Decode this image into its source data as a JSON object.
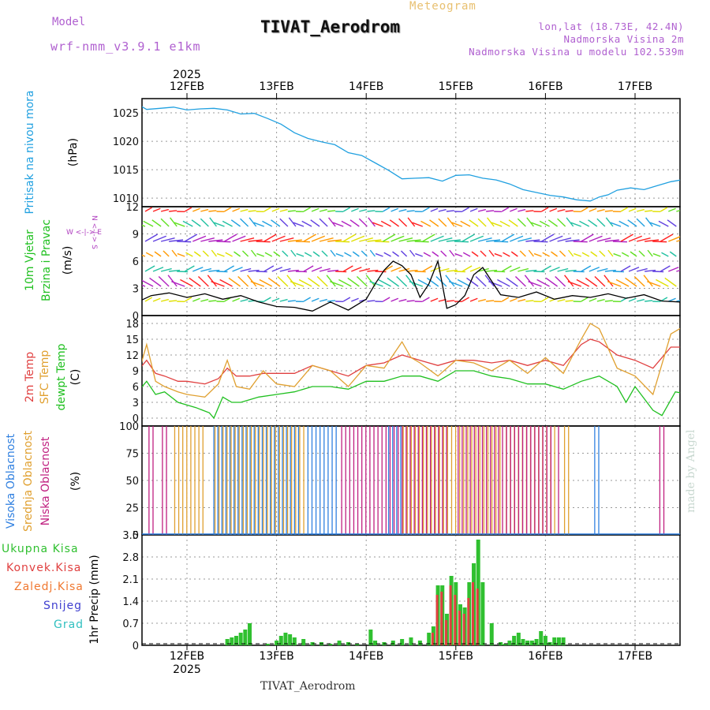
{
  "header": {
    "model_label": "Model",
    "model_name": "wrf-nmm_v3.9.1 e1km",
    "meteogram_label": "Meteogram",
    "title": "TIVAT_Aerodrom",
    "lonlat": "lon,lat (18.73E, 42.4N)",
    "altitude": "Nadmorska Visina 2m",
    "model_altitude": "Nadmorska Visina u modelu 102.539m"
  },
  "footer": {
    "station": "TIVAT_Aerodrom",
    "credit": "made by Angel"
  },
  "colors": {
    "pressure": "#20a0e0",
    "temp2m": "#e04040",
    "sfc": "#e0a030",
    "dew": "#20c020",
    "high_cloud": "#3080e0",
    "mid_cloud": "#e0a030",
    "low_cloud": "#c02080",
    "total_precip": "#30c030",
    "convective": "#e04040"
  },
  "chart_data": [
    {
      "type": "line",
      "name": "pressure",
      "ylabel": [
        "Pritisak na nivou mora",
        "(hPa)"
      ],
      "ylim": [
        1008.5,
        1027.5
      ],
      "yticks": [
        1010,
        1015,
        1020,
        1025
      ],
      "x_days": [
        "12FEB",
        "13FEB",
        "14FEB",
        "15FEB",
        "16FEB",
        "17FEB"
      ],
      "x_year": "2025",
      "grid": true,
      "series": [
        {
          "x": [
            -0.55,
            -0.45,
            -0.3,
            -0.15,
            0,
            0.15,
            0.3,
            0.45,
            0.6,
            0.75,
            0.9,
            1.05,
            1.2,
            1.35,
            1.5,
            1.65,
            1.8,
            1.95,
            2.1,
            2.25,
            2.4,
            2.55,
            2.7,
            2.85,
            3.0,
            3.15,
            3.3,
            3.45,
            3.6,
            3.75,
            3.9,
            4.05,
            4.2,
            4.35,
            4.5,
            4.6,
            4.7,
            4.8,
            4.95,
            5.1,
            5.25,
            5.4,
            5.55,
            5.6
          ],
          "values": [
            1026.5,
            1025.6,
            1025.8,
            1026.0,
            1025.5,
            1025.7,
            1025.8,
            1025.5,
            1024.8,
            1024.9,
            1024.0,
            1023.0,
            1021.5,
            1020.5,
            1019.9,
            1019.4,
            1018.0,
            1017.5,
            1016.2,
            1014.9,
            1013.4,
            1013.5,
            1013.6,
            1013.0,
            1014.0,
            1014.1,
            1013.5,
            1013.2,
            1012.5,
            1011.5,
            1011.0,
            1010.5,
            1010.2,
            1009.7,
            1009.5,
            1010.2,
            1010.6,
            1011.4,
            1011.8,
            1011.5,
            1012.2,
            1012.9,
            1013.3,
            1013.3
          ]
        }
      ]
    },
    {
      "type": "line",
      "name": "wind",
      "ylabel": [
        "10m Vjetar",
        "Brzina i Pravac",
        "(m/s)"
      ],
      "compass": [
        "N",
        "W",
        "E",
        "S"
      ],
      "ylim": [
        0,
        12
      ],
      "yticks": [
        0,
        3,
        6,
        9,
        12
      ],
      "grid": true,
      "series": [
        {
          "name": "speed",
          "x": [
            -0.55,
            -0.4,
            -0.2,
            0,
            0.2,
            0.4,
            0.6,
            0.8,
            1.0,
            1.2,
            1.4,
            1.6,
            1.8,
            2.0,
            2.1,
            2.2,
            2.3,
            2.4,
            2.5,
            2.6,
            2.7,
            2.8,
            2.9,
            3.0,
            3.1,
            3.2,
            3.3,
            3.5,
            3.7,
            3.9,
            4.1,
            4.3,
            4.5,
            4.7,
            4.9,
            5.1,
            5.3,
            5.5,
            5.6
          ],
          "values": [
            1.5,
            2.2,
            2.5,
            2.0,
            2.4,
            1.8,
            2.2,
            1.5,
            1.0,
            0.9,
            0.5,
            1.5,
            0.6,
            1.8,
            3.5,
            5.0,
            6.0,
            5.5,
            4.5,
            2.0,
            3.5,
            6.0,
            0.8,
            1.2,
            2.2,
            4.5,
            5.3,
            2.3,
            2.0,
            2.6,
            1.8,
            2.2,
            2.0,
            2.4,
            1.9,
            2.3,
            1.6,
            1.5,
            2.4
          ]
        }
      ]
    },
    {
      "type": "line",
      "name": "temperature",
      "ylabel": [
        "2m Temp",
        "SFC Temp",
        "dewpt Temp",
        "(C)"
      ],
      "ylim": [
        -1.5,
        19.5
      ],
      "yticks": [
        0,
        3,
        6,
        9,
        12,
        15,
        18
      ],
      "grid": true,
      "series": [
        {
          "name": "2m Temp",
          "x": [
            -0.55,
            -0.45,
            -0.35,
            -0.25,
            -0.1,
            0,
            0.2,
            0.35,
            0.45,
            0.55,
            0.7,
            0.85,
            1.0,
            1.2,
            1.4,
            1.6,
            1.8,
            2.0,
            2.2,
            2.4,
            2.6,
            2.8,
            3.0,
            3.2,
            3.4,
            3.6,
            3.8,
            4.0,
            4.2,
            4.4,
            4.5,
            4.6,
            4.8,
            5.0,
            5.2,
            5.4,
            5.6
          ],
          "values": [
            9,
            11,
            8.5,
            8,
            7,
            7,
            6.5,
            7.5,
            9.5,
            8,
            8,
            8.5,
            8.5,
            8.5,
            10,
            9,
            8,
            10,
            10.5,
            12,
            11,
            10,
            11,
            11,
            10.5,
            11,
            10,
            11,
            10,
            14,
            15,
            14.5,
            12,
            11,
            9.5,
            13.5,
            13.5
          ]
        },
        {
          "name": "SFC Temp",
          "x": [
            -0.55,
            -0.45,
            -0.35,
            -0.25,
            -0.1,
            0,
            0.2,
            0.35,
            0.45,
            0.55,
            0.7,
            0.85,
            1.0,
            1.2,
            1.4,
            1.6,
            1.8,
            2.0,
            2.2,
            2.4,
            2.5,
            2.6,
            2.8,
            3.0,
            3.2,
            3.4,
            3.6,
            3.8,
            4.0,
            4.2,
            4.4,
            4.5,
            4.6,
            4.8,
            5.0,
            5.2,
            5.4,
            5.6
          ],
          "values": [
            8,
            14,
            7,
            6,
            5,
            4.5,
            4,
            6.5,
            11,
            6,
            5.5,
            9,
            6.5,
            6,
            10,
            9,
            6,
            10,
            9.5,
            14.5,
            11.5,
            10.5,
            8,
            11,
            10.5,
            9,
            11,
            8.5,
            11.5,
            8.5,
            15,
            18,
            17,
            9.5,
            8,
            4.5,
            16,
            18
          ]
        },
        {
          "name": "dewpt Temp",
          "x": [
            -0.55,
            -0.45,
            -0.35,
            -0.25,
            -0.1,
            0.1,
            0.25,
            0.3,
            0.4,
            0.5,
            0.6,
            0.8,
            1.0,
            1.2,
            1.4,
            1.6,
            1.8,
            2.0,
            2.2,
            2.4,
            2.6,
            2.8,
            3.0,
            3.2,
            3.4,
            3.6,
            3.8,
            4.0,
            4.2,
            4.4,
            4.6,
            4.8,
            4.9,
            5.0,
            5.2,
            5.3,
            5.45,
            5.6
          ],
          "values": [
            5,
            7,
            4.5,
            5,
            3,
            2,
            1,
            0,
            4,
            3,
            3,
            4,
            4.5,
            5,
            6,
            6,
            5.5,
            7,
            7,
            8,
            8,
            7,
            9,
            9,
            8,
            7.5,
            6.5,
            6.5,
            5.5,
            7,
            8,
            6,
            3,
            6,
            1.5,
            0.5,
            5,
            4.5
          ]
        }
      ]
    },
    {
      "type": "bar",
      "name": "cloud",
      "ylabel": [
        "Visoka Oblacnost",
        "Srednja Oblacnost",
        "Niska Oblacnost",
        "(%)"
      ],
      "ylim": [
        0,
        100
      ],
      "yticks": [
        0,
        25,
        50,
        75,
        100
      ],
      "grid": true,
      "series": [
        {
          "name": "Visoka Oblacnost",
          "ranges": [
            [
              0.3,
              1.25
            ],
            [
              1.35,
              1.7
            ],
            [
              2.25,
              2.4
            ],
            [
              4.55,
              4.6
            ]
          ]
        },
        {
          "name": "Srednja Oblacnost",
          "ranges": [
            [
              -0.15,
              0.2
            ],
            [
              0.3,
              1.3
            ],
            [
              2.4,
              3.5
            ],
            [
              3.55,
              4.1
            ],
            [
              4.2,
              4.25
            ]
          ]
        },
        {
          "name": "Niska Oblacnost",
          "ranges": [
            [
              -0.45,
              -0.4
            ],
            [
              -0.3,
              -0.25
            ],
            [
              1.7,
              2.9
            ],
            [
              3.0,
              4.05
            ],
            [
              4.12,
              4.15
            ],
            [
              5.25,
              5.3
            ]
          ]
        }
      ]
    },
    {
      "type": "bar",
      "name": "precip",
      "ylabel": [
        "Ukupna Kisa",
        "Konvek.Kisa",
        "Zaledj.Kisa",
        "Snijeg",
        "Grad",
        "1hr Precip (mm)"
      ],
      "ylim": [
        0,
        3.5
      ],
      "yticks": [
        0,
        0.7,
        1.4,
        2.1,
        2.8,
        3.5
      ],
      "grid": true,
      "series": [
        {
          "name": "Ukupna Kisa",
          "x": [
            0.45,
            0.5,
            0.55,
            0.6,
            0.65,
            0.7,
            0.9,
            1.0,
            1.05,
            1.1,
            1.15,
            1.2,
            1.3,
            1.4,
            1.5,
            1.6,
            1.7,
            1.8,
            1.9,
            2.05,
            2.1,
            2.2,
            2.3,
            2.4,
            2.5,
            2.6,
            2.7,
            2.75,
            2.8,
            2.85,
            2.9,
            2.95,
            3.0,
            3.05,
            3.1,
            3.15,
            3.2,
            3.25,
            3.3,
            3.4,
            3.5,
            3.55,
            3.6,
            3.65,
            3.7,
            3.75,
            3.8,
            3.85,
            3.9,
            3.95,
            4.0,
            4.05,
            4.1,
            4.15,
            4.2
          ],
          "values": [
            0.2,
            0.25,
            0.3,
            0.4,
            0.5,
            0.7,
            0.05,
            0.15,
            0.3,
            0.4,
            0.35,
            0.25,
            0.2,
            0.1,
            0.1,
            0.05,
            0.15,
            0.1,
            0.05,
            0.5,
            0.15,
            0.1,
            0.15,
            0.2,
            0.25,
            0.15,
            0.4,
            0.6,
            1.9,
            1.9,
            1.0,
            2.2,
            2.0,
            1.3,
            1.2,
            2.0,
            2.6,
            3.35,
            2.0,
            0.7,
            0.1,
            0.05,
            0.15,
            0.3,
            0.4,
            0.2,
            0.15,
            0.15,
            0.2,
            0.45,
            0.3,
            0.1,
            0.25,
            0.25,
            0.25
          ]
        },
        {
          "name": "Konvek.Kisa",
          "x": [
            2.75,
            2.8,
            2.85,
            2.9,
            2.95,
            3.0,
            3.05,
            3.1,
            3.15,
            3.2,
            3.25
          ],
          "values": [
            0.4,
            1.6,
            1.7,
            0.8,
            1.9,
            1.6,
            1.1,
            1.0,
            1.5,
            2.0,
            1.8
          ]
        }
      ]
    }
  ]
}
